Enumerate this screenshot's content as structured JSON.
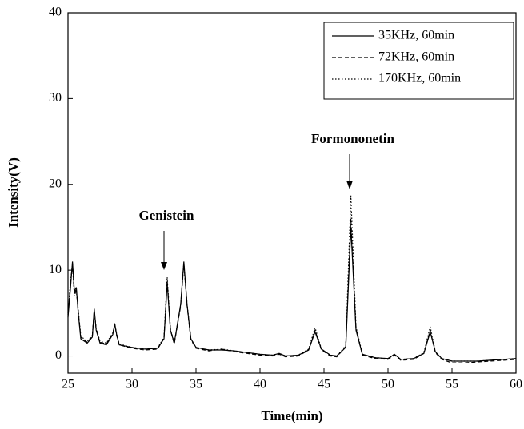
{
  "chart_data": {
    "type": "line",
    "x_label": "Time(min)",
    "y_label": "Intensity(V)",
    "annotations": [
      "Genistein",
      "Formononetin"
    ],
    "xlim": [
      25,
      60
    ],
    "ylim": [
      -2,
      40
    ],
    "xticks": [
      25,
      30,
      35,
      40,
      45,
      50,
      55,
      60
    ],
    "yticks": [
      0,
      10,
      20,
      30,
      40
    ],
    "legend": "upper right",
    "x": [
      25,
      25.2,
      25.35,
      25.5,
      25.65,
      25.8,
      26,
      26.5,
      26.9,
      27.05,
      27.2,
      27.5,
      28,
      28.5,
      28.65,
      28.8,
      29,
      30,
      31,
      32,
      32.5,
      32.75,
      33,
      33.3,
      33.8,
      34.05,
      34.3,
      34.6,
      35,
      36,
      37,
      38,
      39,
      40,
      41,
      41.5,
      42,
      43,
      43.8,
      44.3,
      44.8,
      45.5,
      46,
      46.7,
      47.1,
      47.5,
      48,
      49,
      50,
      50.5,
      51,
      52,
      52.8,
      53.3,
      53.7,
      54.2,
      55,
      56,
      57,
      58,
      59,
      60
    ],
    "series": [
      {
        "name": "35KHz, 60min",
        "color": "#000000",
        "style": "solid",
        "values": [
          4.5,
          8,
          11,
          7.5,
          8,
          5,
          2,
          1.5,
          2.2,
          5.5,
          3,
          1.5,
          1.3,
          2.5,
          3.8,
          2.5,
          1.3,
          1,
          0.8,
          0.9,
          2,
          8.5,
          3,
          1.5,
          6,
          11,
          6,
          2,
          1,
          0.7,
          0.7,
          0.6,
          0.4,
          0.2,
          0.1,
          0.3,
          0,
          0.1,
          0.7,
          2.8,
          0.8,
          0.1,
          0,
          1,
          15,
          3,
          0.2,
          -0.2,
          -0.3,
          0.2,
          -0.4,
          -0.3,
          0.3,
          2.8,
          0.5,
          -0.3,
          -0.6,
          -0.6,
          -0.6,
          -0.5,
          -0.4,
          -0.3
        ]
      },
      {
        "name": "72KHz, 60min",
        "color": "#000000",
        "style": "dashed",
        "values": [
          4.8,
          8.5,
          10.8,
          7.2,
          7.8,
          5.2,
          2.2,
          1.6,
          2.3,
          5.3,
          3.1,
          1.6,
          1.4,
          2.6,
          3.7,
          2.4,
          1.3,
          0.9,
          0.7,
          0.8,
          2.1,
          8.8,
          3.1,
          1.4,
          5.8,
          10.8,
          5.9,
          1.9,
          0.9,
          0.6,
          0.8,
          0.5,
          0.3,
          0.1,
          0,
          0.2,
          -0.1,
          0,
          0.7,
          3,
          0.7,
          0,
          -0.1,
          1.1,
          16,
          3.2,
          0.1,
          -0.3,
          -0.4,
          0.1,
          -0.5,
          -0.4,
          0.3,
          3,
          0.4,
          -0.4,
          -0.8,
          -0.8,
          -0.7,
          -0.6,
          -0.5,
          -0.4
        ]
      },
      {
        "name": "170KHz, 60min",
        "color": "#000000",
        "style": "dotted",
        "values": [
          5,
          8.8,
          10.5,
          7,
          7.6,
          5.4,
          2.3,
          1.7,
          2.4,
          5.2,
          3.2,
          1.7,
          1.5,
          2.7,
          3.6,
          2.6,
          1.4,
          1,
          0.8,
          0.9,
          2.2,
          9.2,
          3.2,
          1.5,
          5.9,
          10.7,
          6.1,
          2,
          1,
          0.7,
          0.8,
          0.6,
          0.4,
          0.2,
          0.1,
          0.3,
          0,
          0.1,
          0.8,
          3.3,
          0.8,
          0.1,
          0,
          1.2,
          18.7,
          3.4,
          0.2,
          -0.2,
          -0.3,
          0.2,
          -0.4,
          -0.3,
          0.4,
          3.4,
          0.5,
          -0.3,
          -0.6,
          -0.6,
          -0.6,
          -0.5,
          -0.4,
          -0.3
        ]
      }
    ]
  }
}
